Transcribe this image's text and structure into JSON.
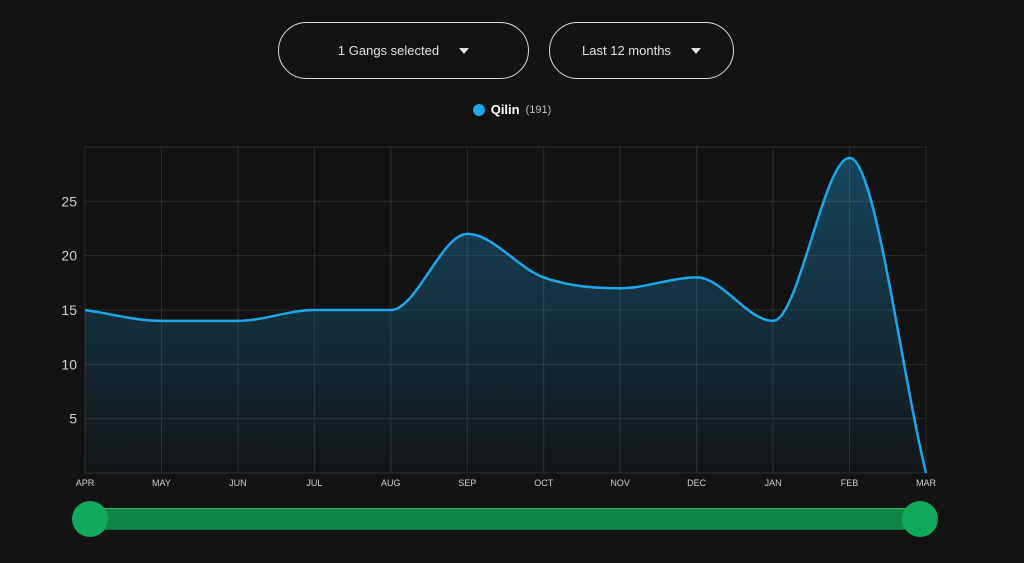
{
  "filters": {
    "gangs_label": "1 Gangs selected",
    "range_label": "Last 12 months"
  },
  "legend": {
    "name": "Qilin",
    "count": "(191)",
    "color": "#1aa7ec"
  },
  "colors": {
    "background": "#131313",
    "line": "#1aa7ec",
    "grid": "#2e2e2e",
    "slider": "#10854a",
    "slider_handle": "#10a85a"
  },
  "slider": {
    "start": "APR",
    "end": "MAR"
  },
  "chart_data": {
    "type": "area",
    "categories": [
      "APR",
      "MAY",
      "JUN",
      "JUL",
      "AUG",
      "SEP",
      "OCT",
      "NOV",
      "DEC",
      "JAN",
      "FEB",
      "MAR"
    ],
    "series": [
      {
        "name": "Qilin",
        "values": [
          15,
          14,
          14,
          15,
          15,
          22,
          18,
          17,
          18,
          14,
          29,
          0
        ]
      }
    ],
    "yticks": [
      5,
      10,
      15,
      20,
      25
    ],
    "ylim": [
      0,
      30
    ],
    "grid": true,
    "curve": "smooth",
    "title": "",
    "xlabel": "",
    "ylabel": ""
  }
}
